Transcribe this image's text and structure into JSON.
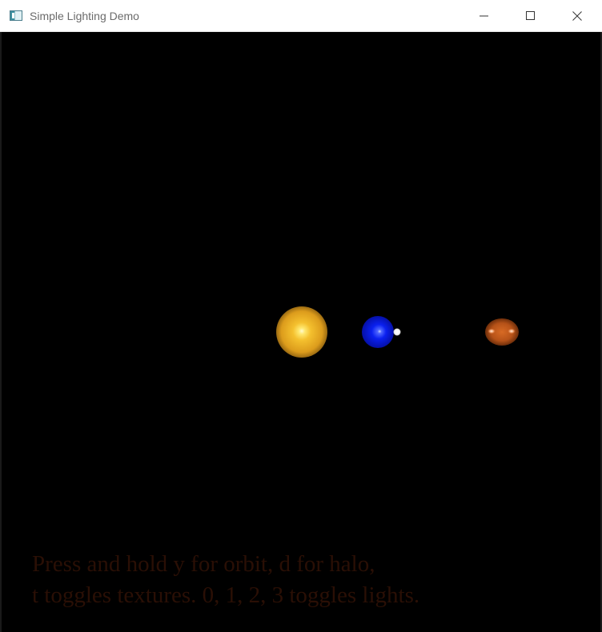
{
  "window": {
    "title": "Simple Lighting Demo",
    "icon": "window-app-icon",
    "controls": {
      "minimize_icon": "minimize-icon",
      "maximize_icon": "maximize-icon",
      "close_icon": "close-icon"
    }
  },
  "scene": {
    "background_color": "#000000",
    "bodies": [
      {
        "name": "sun",
        "color": "#e0a21e",
        "highlight": "#fff6a0"
      },
      {
        "name": "earth",
        "color": "#0a1ae6",
        "highlight": "#8fa2ff"
      },
      {
        "name": "moon",
        "color": "#ffffff"
      },
      {
        "name": "mars",
        "color": "#c0581a",
        "highlight": "#ffc9a6"
      }
    ]
  },
  "instructions": {
    "line1": "Press and hold y for orbit, d for halo,",
    "line2": "t toggles textures. 0, 1, 2, 3 toggles lights.",
    "color": "#2a0f05"
  }
}
